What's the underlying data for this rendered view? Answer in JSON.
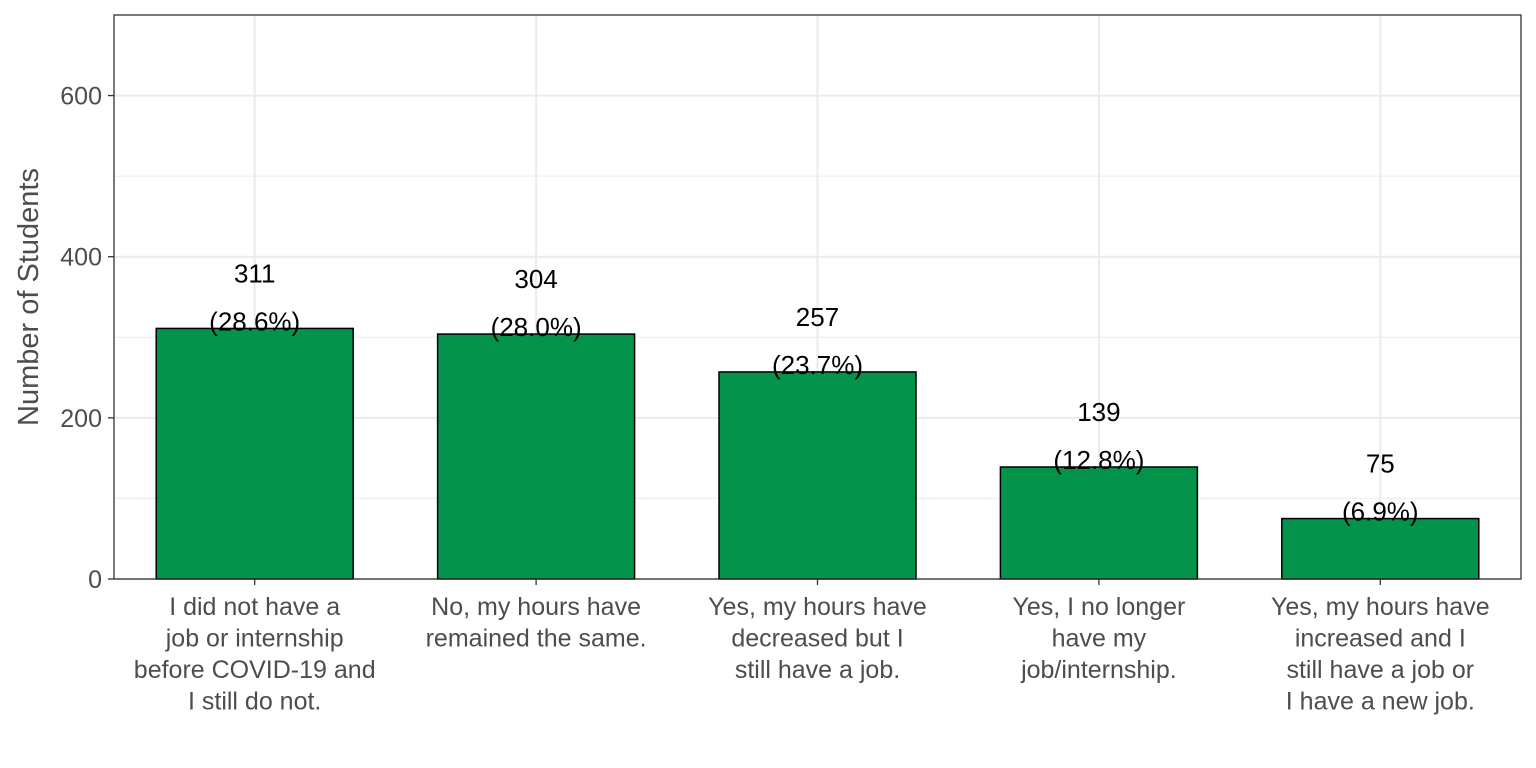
{
  "chart_data": {
    "type": "bar",
    "title": "",
    "xlabel": "",
    "ylabel": "Number of Students",
    "ylim": [
      0,
      700
    ],
    "yticks": [
      0,
      200,
      400,
      600
    ],
    "grid": true,
    "legend": "none",
    "bar_color": "#03934B",
    "bar_outline_color": "#000000",
    "categories": [
      [
        "I did not have a",
        "job or internship",
        "before COVID-19 and",
        "I still do not."
      ],
      [
        "No, my hours have",
        "remained the same."
      ],
      [
        "Yes, my hours have",
        "decreased but I",
        "still have a job."
      ],
      [
        "Yes, I no longer",
        "have my",
        "job/internship."
      ],
      [
        "Yes, my hours have",
        "increased and I",
        "still have a job or",
        "I have a new job."
      ]
    ],
    "values": [
      311,
      304,
      257,
      139,
      75
    ],
    "count_labels": [
      "311",
      "304",
      "257",
      "139",
      "75"
    ],
    "percent_labels": [
      "(28.6%)",
      "(28.0%)",
      "(23.7%)",
      "(12.8%)",
      "(6.9%)"
    ]
  }
}
